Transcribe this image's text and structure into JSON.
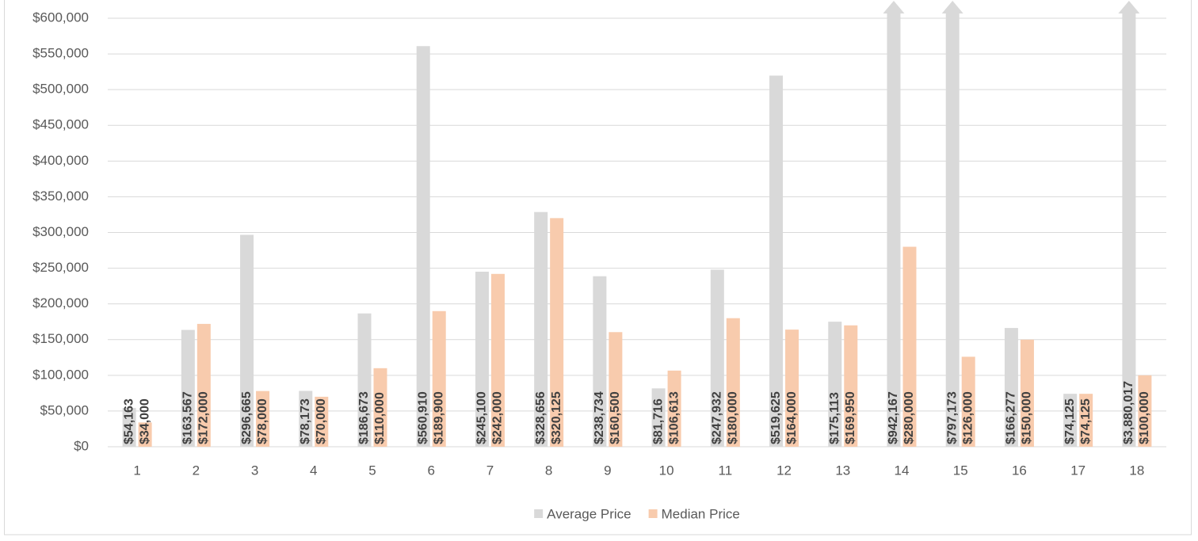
{
  "chart_data": {
    "type": "bar",
    "categories": [
      "1",
      "2",
      "3",
      "4",
      "5",
      "6",
      "7",
      "8",
      "9",
      "10",
      "11",
      "12",
      "13",
      "14",
      "15",
      "16",
      "17",
      "18"
    ],
    "series": [
      {
        "name": "Average Price",
        "color": "#d9d9d9",
        "values": [
          54163,
          163567,
          296665,
          78173,
          186673,
          560910,
          245100,
          328656,
          238734,
          81716,
          247932,
          519625,
          175113,
          942167,
          797173,
          166277,
          74125,
          3880017
        ],
        "value_labels": [
          "$54,163",
          "$163,567",
          "$296,665",
          "$78,173",
          "$186,673",
          "$560,910",
          "$245,100",
          "$328,656",
          "$238,734",
          "$81,716",
          "$247,932",
          "$519,625",
          "$175,113",
          "$942,167",
          "$797,173",
          "$166,277",
          "$74,125",
          "$3,880,017"
        ]
      },
      {
        "name": "Median Price",
        "color": "#f8cbad",
        "values": [
          34000,
          172000,
          78000,
          70000,
          110000,
          189900,
          242000,
          320125,
          160500,
          106613,
          180000,
          164000,
          169950,
          280000,
          126000,
          150000,
          74125,
          100000
        ],
        "value_labels": [
          "$34,000",
          "$172,000",
          "$78,000",
          "$70,000",
          "$110,000",
          "$189,900",
          "$242,000",
          "$320,125",
          "$160,500",
          "$106,613",
          "$180,000",
          "$164,000",
          "$169,950",
          "$280,000",
          "$126,000",
          "$150,000",
          "$74,125",
          "$100,000"
        ]
      }
    ],
    "ylim": [
      0,
      600000
    ],
    "yticks": [
      {
        "value": 0,
        "label": "$0"
      },
      {
        "value": 50000,
        "label": "$50,000"
      },
      {
        "value": 100000,
        "label": "$100,000"
      },
      {
        "value": 150000,
        "label": "$150,000"
      },
      {
        "value": 200000,
        "label": "$200,000"
      },
      {
        "value": 250000,
        "label": "$250,000"
      },
      {
        "value": 300000,
        "label": "$300,000"
      },
      {
        "value": 350000,
        "label": "$350,000"
      },
      {
        "value": 400000,
        "label": "$400,000"
      },
      {
        "value": 450000,
        "label": "$450,000"
      },
      {
        "value": 500000,
        "label": "$500,000"
      },
      {
        "value": 550000,
        "label": "$550,000"
      },
      {
        "value": 600000,
        "label": "$600,000"
      }
    ],
    "grid": true,
    "legend": "bottom"
  }
}
